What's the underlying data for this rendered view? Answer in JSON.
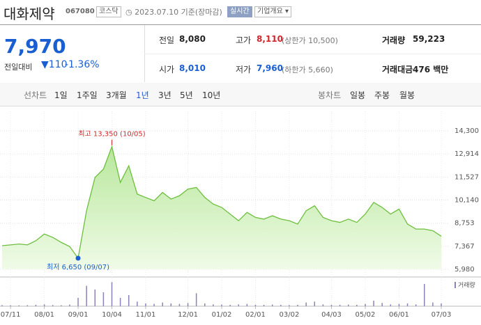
{
  "header": {
    "name": "대화제약",
    "code": "067080",
    "market": "코스닥",
    "date": "2023.07.10 기준(장마감)",
    "realtime": "실시간",
    "overview": "기업개요"
  },
  "quote": {
    "price": "7,970",
    "change_label": "전일대비",
    "change": "110",
    "change_pct": "-1.36%"
  },
  "stats": [
    {
      "label": "전일",
      "value": "8,080"
    },
    {
      "label": "고가",
      "value": "8,110",
      "extra": "(상한가 10,500)"
    },
    {
      "label": "거래량",
      "value": "59,223"
    },
    {
      "label": "시가",
      "value": "8,010"
    },
    {
      "label": "저가",
      "value": "7,960",
      "extra": "(하한가 5,660)"
    },
    {
      "label": "거래대금",
      "value": "476 백만"
    }
  ],
  "line_tabs": {
    "label": "선차트",
    "items": [
      "1일",
      "1주일",
      "3개월",
      "1년",
      "3년",
      "5년",
      "10년"
    ]
  },
  "candle_tabs": {
    "label": "봉차트",
    "items": [
      "일봉",
      "주봉",
      "월봉"
    ]
  },
  "chart_data": {
    "type": "area",
    "categories": [
      null,
      "07/11",
      null,
      null,
      null,
      "08/01",
      null,
      null,
      null,
      "09/01",
      null,
      null,
      null,
      "10/04",
      null,
      null,
      null,
      "11/01",
      null,
      null,
      null,
      null,
      "12/01",
      null,
      null,
      null,
      "01/02",
      null,
      null,
      null,
      "02/01",
      null,
      null,
      null,
      "03/02",
      null,
      null,
      null,
      null,
      "04/03",
      null,
      null,
      null,
      "05/02",
      null,
      null,
      null,
      "06/01",
      null,
      null,
      null,
      null,
      "07/03"
    ],
    "series": [
      {
        "color": "#6cbf3c",
        "values": [
          7400,
          7450,
          7500,
          7450,
          7700,
          8100,
          7900,
          7600,
          7350,
          6650,
          9500,
          11500,
          12000,
          13350,
          11200,
          12200,
          10500,
          10300,
          10100,
          10600,
          10200,
          10400,
          10800,
          10900,
          10300,
          9900,
          9700,
          9300,
          8900,
          9400,
          9100,
          9000,
          9200,
          9000,
          8900,
          8700,
          9500,
          9800,
          9100,
          8900,
          8800,
          9000,
          8800,
          9300,
          10000,
          9700,
          9300,
          9600,
          8700,
          8400,
          8400,
          8300,
          7970
        ]
      },
      {
        "name": "거래량",
        "color": "#8e82b5",
        "axis": "y2",
        "values": [
          120000,
          100000,
          90000,
          110000,
          150000,
          200000,
          130000,
          100000,
          180000,
          900000,
          2200000,
          1800000,
          1500000,
          2600000,
          900000,
          1200000,
          500000,
          300000,
          250000,
          400000,
          300000,
          250000,
          350000,
          1400000,
          300000,
          200000,
          180000,
          150000,
          200000,
          250000,
          150000,
          150000,
          180000,
          150000,
          120000,
          150000,
          400000,
          500000,
          200000,
          150000,
          150000,
          180000,
          150000,
          250000,
          600000,
          350000,
          200000,
          250000,
          300000,
          200000,
          2400000,
          400000,
          300000
        ]
      }
    ],
    "ylim": [
      5980,
      14300
    ],
    "yticks": [
      {
        "value": 14300,
        "label": "14,300"
      },
      {
        "value": 12914,
        "label": "12,914"
      },
      {
        "value": 11527,
        "label": "11,527"
      },
      {
        "value": 10140,
        "label": "10,140"
      },
      {
        "value": 8753,
        "label": "8,753"
      },
      {
        "value": 7367,
        "label": "7,367"
      },
      {
        "value": 5980,
        "label": "5,980"
      }
    ],
    "y2lim": [
      0,
      3000000
    ],
    "high_label": "최고 13,350 (10/05)",
    "low_label": "최저 6,650 (09/07)",
    "grid": true
  }
}
